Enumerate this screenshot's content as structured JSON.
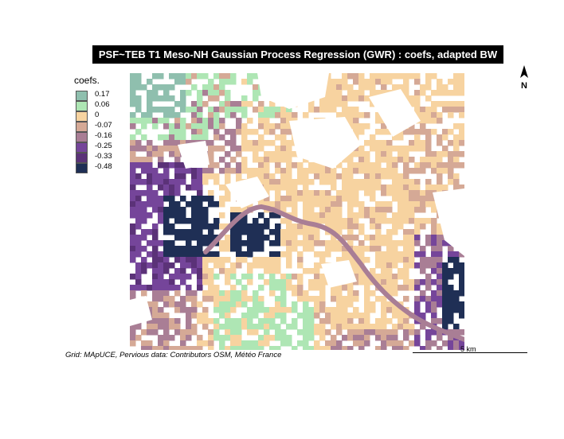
{
  "title": "PSF~TEB T1 Meso-NH Gaussian Process Regression (GWR) : coefs, adapted BW",
  "legend": {
    "title": "coefs.",
    "items": [
      {
        "label": "0.17",
        "color": "#8fbfae"
      },
      {
        "label": "0.06",
        "color": "#aee6b4"
      },
      {
        "label": "0",
        "color": "#f7d3a0"
      },
      {
        "label": "-0.07",
        "color": "#d5a996"
      },
      {
        "label": "-0.16",
        "color": "#a97e95"
      },
      {
        "label": "-0.25",
        "color": "#75459a"
      },
      {
        "label": "-0.33",
        "color": "#5b3278"
      },
      {
        "label": "-0.48",
        "color": "#1f2f55"
      }
    ]
  },
  "north_arrow": {
    "label": "N",
    "icon": "north-arrow-icon"
  },
  "credits": "Grid: MApUCE, Pervious data: Contributors OSM, Météo France",
  "scale": {
    "label": "5 km"
  },
  "river_color": "#a97e95"
}
